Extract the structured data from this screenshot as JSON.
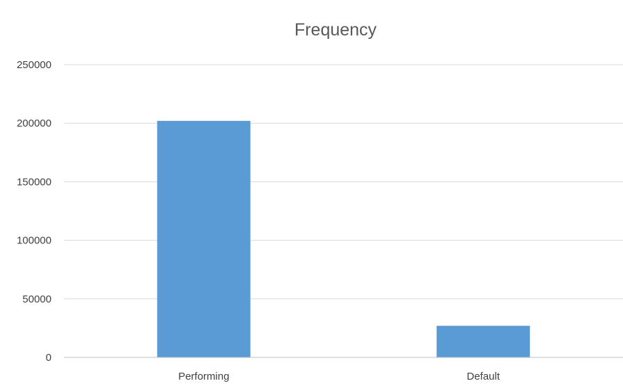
{
  "chart_data": {
    "type": "bar",
    "title": "Frequency",
    "xlabel": "",
    "ylabel": "",
    "categories": [
      "Performing",
      "Default"
    ],
    "values": [
      202000,
      27000
    ],
    "ylim": [
      0,
      250000
    ],
    "yticks": [
      0,
      50000,
      100000,
      150000,
      200000,
      250000
    ],
    "ytick_labels": [
      "0",
      "50000",
      "100000",
      "150000",
      "200000",
      "250000"
    ],
    "grid": true,
    "legend": "none",
    "bar_color": "#5b9bd5"
  }
}
